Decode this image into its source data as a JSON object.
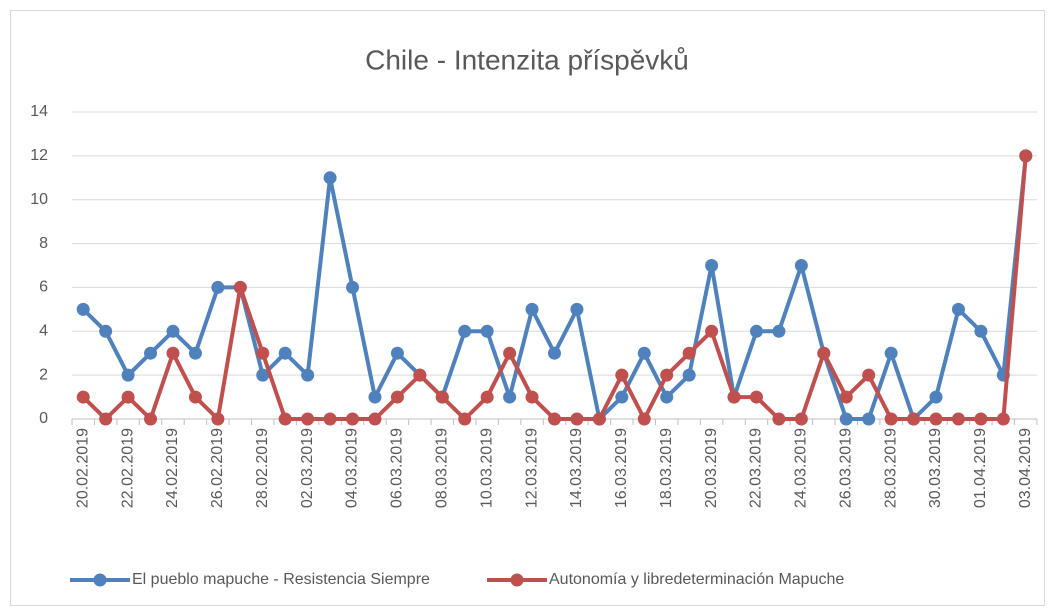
{
  "chart_data": {
    "type": "line",
    "title": "Chile - Intenzita příspěvků",
    "categories": [
      "20.02.2019",
      null,
      "22.02.2019",
      null,
      "24.02.2019",
      null,
      "26.02.2019",
      null,
      "28.02.2019",
      null,
      "02.03.2019",
      null,
      "04.03.2019",
      null,
      "06.03.2019",
      null,
      "08.03.2019",
      null,
      "10.03.2019",
      null,
      "12.03.2019",
      null,
      "14.03.2019",
      null,
      "16.03.2019",
      null,
      "18.03.2019",
      null,
      "20.03.2019",
      null,
      "22.03.2019",
      null,
      "24.03.2019",
      null,
      "26.03.2019",
      null,
      "28.03.2019",
      null,
      "30.03.2019",
      null,
      "01.04.2019",
      null,
      "03.04.2019"
    ],
    "series": [
      {
        "name": "El pueblo mapuche - Resistencia Siempre",
        "color": "#4f81bd",
        "values": [
          5,
          4,
          2,
          3,
          4,
          3,
          6,
          6,
          2,
          3,
          2,
          11,
          6,
          1,
          3,
          2,
          1,
          4,
          4,
          1,
          5,
          3,
          5,
          0,
          1,
          3,
          1,
          2,
          7,
          1,
          4,
          4,
          7,
          3,
          0,
          0,
          3,
          0,
          1,
          5,
          4,
          2,
          12
        ]
      },
      {
        "name": "Autonomía y libredeterminación Mapuche",
        "color": "#c0504d",
        "values": [
          1,
          0,
          1,
          0,
          3,
          1,
          0,
          6,
          3,
          0,
          0,
          0,
          0,
          0,
          1,
          2,
          1,
          0,
          1,
          3,
          1,
          0,
          0,
          0,
          2,
          0,
          2,
          3,
          4,
          1,
          1,
          0,
          0,
          3,
          1,
          2,
          0,
          0,
          0,
          0,
          0,
          0,
          12
        ]
      }
    ],
    "ylim": [
      0,
      14
    ],
    "yticks": [
      0,
      2,
      4,
      6,
      8,
      10,
      12,
      14
    ],
    "grid": true,
    "legend": "bottom"
  }
}
